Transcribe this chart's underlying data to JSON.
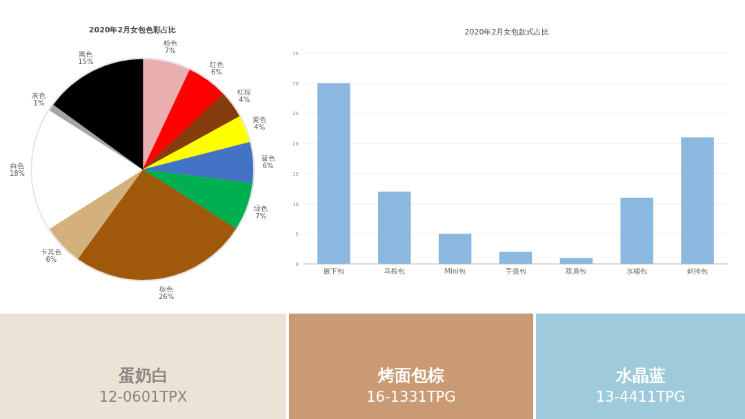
{
  "chart_data": [
    {
      "type": "pie",
      "title": "2020年2月女包色彩占比",
      "categories": [
        "粉色",
        "红色",
        "红棕",
        "黄色",
        "蓝色",
        "绿色",
        "棕色",
        "卡其色",
        "白色",
        "灰色",
        "黑色"
      ],
      "values": [
        7,
        6,
        4,
        4,
        6,
        7,
        26,
        6,
        18,
        1,
        15
      ],
      "colors": [
        "#e8aeb0",
        "#ff0000",
        "#843c0c",
        "#ffff00",
        "#4472c4",
        "#00b050",
        "#a0580a",
        "#d4b07c",
        "#ffffff",
        "#a6a6a6",
        "#000000"
      ],
      "value_labels": [
        "7%",
        "6%",
        "4%",
        "4%",
        "6%",
        "7%",
        "26%",
        "6%",
        "18%",
        "1%",
        "15%"
      ]
    },
    {
      "type": "bar",
      "title": "2020年2月女包款式占比",
      "categories": [
        "腋下包",
        "马鞍包",
        "Mini包",
        "手提包",
        "双肩包",
        "水桶包",
        "斜挎包"
      ],
      "values": [
        30,
        12,
        5,
        2,
        1,
        11,
        21
      ],
      "color": "#8ab8df",
      "ylim": [
        0,
        35
      ],
      "yticks": [
        0,
        5,
        10,
        15,
        20,
        25,
        30,
        35
      ],
      "grid": "y"
    },
    {
      "type": "other",
      "categories": [
        "蛋奶白",
        "烤面包棕",
        "水晶蓝"
      ],
      "colors": [
        "#ebe3d5",
        "#c99a74",
        "#9fcadc"
      ],
      "annotations": [
        "12-0601TPX",
        "16-1331TPG",
        "13-4411TPG"
      ]
    }
  ]
}
